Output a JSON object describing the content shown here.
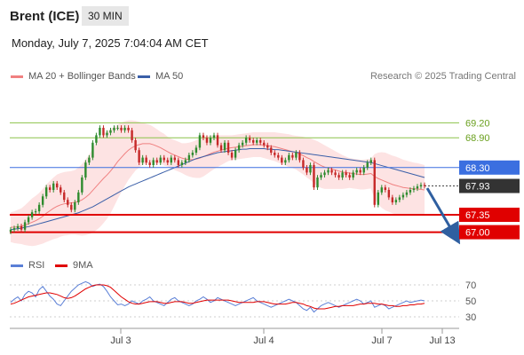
{
  "header": {
    "title": "Brent (ICE)",
    "timeframe": "30 MIN"
  },
  "datetime": "Monday, July 7, 2025 7:04:04 AM CET",
  "legend": {
    "ma20_label": "MA 20 + Bollinger Bands",
    "ma50_label": "MA 50",
    "rsi_label": "RSI",
    "rsi_ma_label": "9MA",
    "attribution": "Research © 2025 Trading Central"
  },
  "colors": {
    "ma20": "#f08080",
    "band_fill": "#fcd9d9",
    "ma50": "#3a5fa8",
    "resistance": "#8bc34a",
    "pivot": "#3b6fe0",
    "support": "#e00000",
    "candle_up": "#2e8b2e",
    "candle_down": "#c62828",
    "arrow": "#2f5fa0",
    "rsi": "#5a7fd6",
    "rsi_ma": "#e00000"
  },
  "chart_data": [
    {
      "type": "candlestick",
      "title": "Brent (ICE)",
      "x_tick_labels": [
        "Jul 3",
        "Jul 4",
        "Jul 7",
        "Jul 13"
      ],
      "ylim": [
        66.85,
        69.35
      ],
      "levels": [
        {
          "value": 69.2,
          "label": "69.20",
          "kind": "resistance"
        },
        {
          "value": 68.9,
          "label": "68.90",
          "kind": "resistance"
        },
        {
          "value": 68.3,
          "label": "68.30",
          "kind": "pivot"
        },
        {
          "value": 67.93,
          "label": "67.93",
          "kind": "last"
        },
        {
          "value": 67.35,
          "label": "67.35",
          "kind": "support"
        },
        {
          "value": 67.0,
          "label": "67.00",
          "kind": "support"
        }
      ],
      "close": [
        67.05,
        67.08,
        67.12,
        67.05,
        67.2,
        67.3,
        67.4,
        67.42,
        67.55,
        67.72,
        67.9,
        67.85,
        67.98,
        67.9,
        67.8,
        67.65,
        67.55,
        67.45,
        67.6,
        67.8,
        68.1,
        68.4,
        68.5,
        68.8,
        68.95,
        69.1,
        68.95,
        69.0,
        69.05,
        69.1,
        69.1,
        69.05,
        69.1,
        69.05,
        68.85,
        68.65,
        68.4,
        68.5,
        68.4,
        68.35,
        68.45,
        68.4,
        68.5,
        68.45,
        68.4,
        68.5,
        68.45,
        68.35,
        68.4,
        68.45,
        68.55,
        68.6,
        68.7,
        68.95,
        68.9,
        68.8,
        68.9,
        68.95,
        68.75,
        68.65,
        68.8,
        68.6,
        68.5,
        68.65,
        68.75,
        68.8,
        68.9,
        68.85,
        68.8,
        68.85,
        68.8,
        68.75,
        68.7,
        68.6,
        68.55,
        68.5,
        68.4,
        68.45,
        68.55,
        68.5,
        68.6,
        68.45,
        68.3,
        68.2,
        68.35,
        67.9,
        68.1,
        68.15,
        68.2,
        68.25,
        68.2,
        68.15,
        68.1,
        68.2,
        68.15,
        68.1,
        68.2,
        68.25,
        68.2,
        68.3,
        68.4,
        68.45,
        67.55,
        67.8,
        67.9,
        67.85,
        67.7,
        67.6,
        67.65,
        67.7,
        67.75,
        67.8,
        67.85,
        67.88,
        67.92,
        67.95,
        67.93
      ],
      "ma20": [
        67.1,
        67.1,
        67.11,
        67.12,
        67.14,
        67.17,
        67.2,
        67.23,
        67.27,
        67.32,
        67.38,
        67.43,
        67.48,
        67.52,
        67.55,
        67.57,
        67.58,
        67.59,
        67.6,
        67.62,
        67.65,
        67.7,
        67.76,
        67.84,
        67.92,
        68.0,
        68.08,
        68.15,
        68.23,
        68.32,
        68.42,
        68.5,
        68.58,
        68.65,
        68.7,
        68.74,
        68.76,
        68.78,
        68.78,
        68.78,
        68.76,
        68.73,
        68.7,
        68.66,
        68.62,
        68.58,
        68.55,
        68.52,
        68.49,
        68.47,
        68.46,
        68.46,
        68.47,
        68.49,
        68.52,
        68.55,
        68.58,
        68.61,
        68.63,
        68.65,
        68.67,
        68.69,
        68.7,
        68.71,
        68.72,
        68.73,
        68.74,
        68.75,
        68.76,
        68.76,
        68.76,
        68.75,
        68.74,
        68.73,
        68.72,
        68.7,
        68.68,
        68.66,
        68.64,
        68.62,
        68.6,
        68.57,
        68.54,
        68.5,
        68.47,
        68.42,
        68.38,
        68.34,
        68.31,
        68.29,
        68.27,
        68.25,
        68.23,
        68.21,
        68.2,
        68.19,
        68.18,
        68.17,
        68.16,
        68.16,
        68.17,
        68.18,
        68.12,
        68.08,
        68.05,
        68.02,
        67.99,
        67.96,
        67.94,
        67.92,
        67.9,
        67.89,
        67.88,
        67.87,
        67.87,
        67.86,
        67.85
      ],
      "ma50": [
        67.05,
        67.06,
        67.07,
        67.08,
        67.1,
        67.11,
        67.13,
        67.15,
        67.17,
        67.19,
        67.21,
        67.23,
        67.25,
        67.27,
        67.29,
        67.31,
        67.33,
        67.35,
        67.37,
        67.39,
        67.42,
        67.45,
        67.48,
        67.51,
        67.55,
        67.59,
        67.63,
        67.67,
        67.71,
        67.75,
        67.79,
        67.83,
        67.87,
        67.91,
        67.94,
        67.97,
        68.0,
        68.03,
        68.06,
        68.09,
        68.12,
        68.15,
        68.18,
        68.21,
        68.24,
        68.27,
        68.3,
        68.33,
        68.36,
        68.39,
        68.42,
        68.45,
        68.48,
        68.5,
        68.52,
        68.54,
        68.56,
        68.58,
        68.6,
        68.61,
        68.62,
        68.63,
        68.64,
        68.65,
        68.66,
        68.67,
        68.67,
        68.68,
        68.68,
        68.68,
        68.68,
        68.68,
        68.67,
        68.67,
        68.66,
        68.66,
        68.65,
        68.64,
        68.63,
        68.62,
        68.61,
        68.6,
        68.59,
        68.58,
        68.57,
        68.56,
        68.55,
        68.54,
        68.53,
        68.52,
        68.51,
        68.5,
        68.49,
        68.48,
        68.47,
        68.46,
        68.45,
        68.44,
        68.43,
        68.42,
        68.41,
        68.4,
        68.38,
        68.36,
        68.34,
        68.32,
        68.3,
        68.28,
        68.26,
        68.24,
        68.22,
        68.2,
        68.18,
        68.16,
        68.14,
        68.12,
        68.1
      ],
      "band_width": [
        0.3,
        0.32,
        0.34,
        0.36,
        0.4,
        0.44,
        0.48,
        0.5,
        0.52,
        0.55,
        0.58,
        0.6,
        0.62,
        0.64,
        0.64,
        0.64,
        0.64,
        0.64,
        0.65,
        0.68,
        0.72,
        0.76,
        0.8,
        0.85,
        0.88,
        0.9,
        0.9,
        0.88,
        0.85,
        0.8,
        0.75,
        0.7,
        0.65,
        0.6,
        0.55,
        0.5,
        0.46,
        0.42,
        0.4,
        0.38,
        0.36,
        0.34,
        0.32,
        0.32,
        0.3,
        0.3,
        0.3,
        0.3,
        0.3,
        0.32,
        0.34,
        0.36,
        0.38,
        0.4,
        0.4,
        0.38,
        0.36,
        0.34,
        0.32,
        0.3,
        0.28,
        0.26,
        0.25,
        0.25,
        0.25,
        0.25,
        0.25,
        0.25,
        0.25,
        0.25,
        0.25,
        0.26,
        0.27,
        0.28,
        0.29,
        0.3,
        0.31,
        0.32,
        0.33,
        0.33,
        0.34,
        0.36,
        0.38,
        0.4,
        0.42,
        0.44,
        0.45,
        0.45,
        0.44,
        0.42,
        0.4,
        0.38,
        0.36,
        0.34,
        0.32,
        0.3,
        0.3,
        0.3,
        0.3,
        0.3,
        0.3,
        0.3,
        0.45,
        0.52,
        0.56,
        0.58,
        0.58,
        0.58,
        0.58,
        0.57,
        0.56,
        0.55,
        0.54,
        0.53,
        0.52,
        0.51,
        0.5
      ]
    },
    {
      "type": "line",
      "title": "RSI",
      "ylim": [
        20,
        80
      ],
      "y_tick_labels": [
        "70",
        "50",
        "30"
      ],
      "y_ticks": [
        70,
        50,
        30
      ],
      "series": [
        {
          "name": "RSI",
          "values": [
            48,
            52,
            55,
            50,
            58,
            62,
            60,
            55,
            64,
            68,
            62,
            56,
            52,
            46,
            44,
            50,
            56,
            62,
            66,
            70,
            72,
            74,
            72,
            68,
            70,
            71,
            68,
            62,
            55,
            50,
            45,
            46,
            44,
            46,
            50,
            48,
            46,
            50,
            52,
            55,
            50,
            48,
            46,
            44,
            48,
            52,
            54,
            50,
            48,
            46,
            44,
            46,
            50,
            52,
            55,
            52,
            48,
            50,
            54,
            52,
            50,
            48,
            46,
            44,
            46,
            48,
            50,
            52,
            54,
            50,
            48,
            46,
            44,
            42,
            44,
            46,
            48,
            50,
            52,
            50,
            48,
            44,
            40,
            38,
            42,
            36,
            40,
            44,
            46,
            48,
            46,
            44,
            42,
            44,
            46,
            48,
            50,
            52,
            50,
            46,
            48,
            50,
            42,
            44,
            46,
            44,
            40,
            42,
            44,
            46,
            48,
            50,
            48,
            49,
            50,
            51,
            50
          ]
        },
        {
          "name": "9MA",
          "values": [
            46,
            47,
            49,
            51,
            53,
            55,
            56,
            57,
            58,
            59,
            60,
            60,
            59,
            58,
            56,
            54,
            53,
            54,
            56,
            59,
            62,
            65,
            67,
            69,
            70,
            70,
            70,
            69,
            67,
            63,
            59,
            55,
            52,
            49,
            47,
            46,
            46,
            47,
            48,
            49,
            49,
            49,
            48,
            47,
            47,
            48,
            49,
            49,
            49,
            48,
            47,
            47,
            48,
            49,
            50,
            51,
            51,
            51,
            51,
            51,
            51,
            51,
            50,
            49,
            48,
            48,
            48,
            48,
            48,
            49,
            49,
            49,
            48,
            47,
            46,
            46,
            46,
            46,
            47,
            48,
            48,
            47,
            46,
            44,
            43,
            41,
            40,
            40,
            40,
            41,
            42,
            43,
            43,
            44,
            44,
            44,
            44,
            45,
            46,
            46,
            47,
            47,
            47,
            46,
            46,
            45,
            44,
            44,
            43,
            43,
            44,
            44,
            45,
            45,
            46,
            46,
            47
          ]
        }
      ]
    }
  ]
}
